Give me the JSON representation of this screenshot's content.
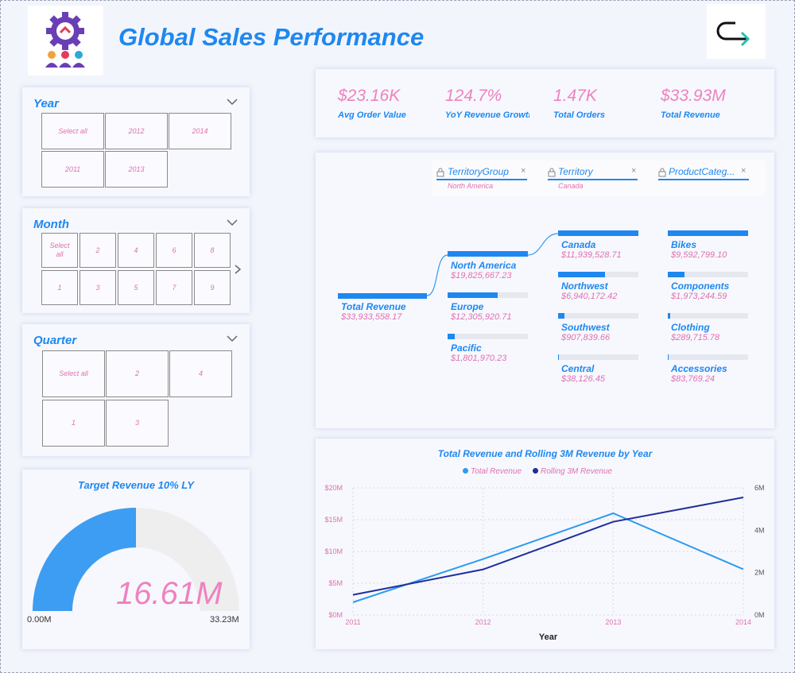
{
  "header": {
    "title": "Global Sales Performance"
  },
  "slicers": {
    "year": {
      "title": "Year",
      "tiles": [
        "Select all",
        "2012",
        "2014",
        "2011",
        "2013"
      ]
    },
    "month": {
      "title": "Month",
      "tiles": [
        "Select all",
        "2",
        "4",
        "6",
        "8",
        "1",
        "3",
        "5",
        "7",
        "9"
      ]
    },
    "quarter": {
      "title": "Quarter",
      "tiles": [
        "Select all",
        "2",
        "4",
        "1",
        "3"
      ]
    }
  },
  "kpis": [
    {
      "value": "$23.16K",
      "label": "Avg Order Value"
    },
    {
      "value": "124.7%",
      "label": "YoY Revenue Growth"
    },
    {
      "value": "1.47K",
      "label": "Total Orders"
    },
    {
      "value": "$33.93M",
      "label": "Total Revenue"
    }
  ],
  "decomp": {
    "headers": [
      {
        "field": "TerritoryGroup",
        "selected": "North America"
      },
      {
        "field": "Territory",
        "selected": "Canada"
      },
      {
        "field": "ProductCateg...",
        "selected": ""
      }
    ],
    "root": {
      "label": "Total Revenue",
      "value": "$33,933,558.17",
      "fill": 1.0
    },
    "groups": [
      {
        "label": "North America",
        "value": "$19,825,667.23",
        "fill": 1.0
      },
      {
        "label": "Europe",
        "value": "$12,305,920.71",
        "fill": 0.62
      },
      {
        "label": "Pacific",
        "value": "$1,801,970.23",
        "fill": 0.09
      }
    ],
    "territories": [
      {
        "label": "Canada",
        "value": "$11,939,528.71",
        "fill": 1.0
      },
      {
        "label": "Northwest",
        "value": "$6,940,172.42",
        "fill": 0.58
      },
      {
        "label": "Southwest",
        "value": "$907,839.66",
        "fill": 0.08
      },
      {
        "label": "Central",
        "value": "$38,126.45",
        "fill": 0.01
      }
    ],
    "categories": [
      {
        "label": "Bikes",
        "value": "$9,592,799.10",
        "fill": 1.0
      },
      {
        "label": "Components",
        "value": "$1,973,244.59",
        "fill": 0.21
      },
      {
        "label": "Clothing",
        "value": "$289,715.78",
        "fill": 0.03
      },
      {
        "label": "Accessories",
        "value": "$83,769.24",
        "fill": 0.01
      }
    ]
  },
  "gauge": {
    "title": "Target Revenue 10% LY",
    "value_label": "16.61M",
    "min_label": "0.00M",
    "max_label": "33.23M",
    "fraction": 0.5
  },
  "chart_data": {
    "type": "line",
    "title": "Total Revenue and Rolling 3M Revenue by Year",
    "xlabel": "Year",
    "x": [
      "2011",
      "2012",
      "2013",
      "2014"
    ],
    "series": [
      {
        "name": "Total Revenue",
        "axis": "left",
        "color": "#2c9bf0",
        "values": [
          2.0,
          8.8,
          16.0,
          7.2
        ]
      },
      {
        "name": "Rolling 3M Revenue",
        "axis": "right",
        "color": "#1f2e9a",
        "values": [
          0.95,
          2.15,
          4.4,
          5.55
        ]
      }
    ],
    "y_left": {
      "ticks": [
        "$0M",
        "$5M",
        "$10M",
        "$15M",
        "$20M"
      ],
      "range": [
        0,
        20
      ]
    },
    "y_right": {
      "ticks": [
        "0M",
        "2M",
        "4M",
        "6M"
      ],
      "range": [
        0,
        6
      ]
    },
    "legend": "top-center",
    "grid": true
  },
  "colors": {
    "accent": "#1e88f0",
    "pink": "#ee82c0",
    "dark_series": "#1f2e9a"
  }
}
